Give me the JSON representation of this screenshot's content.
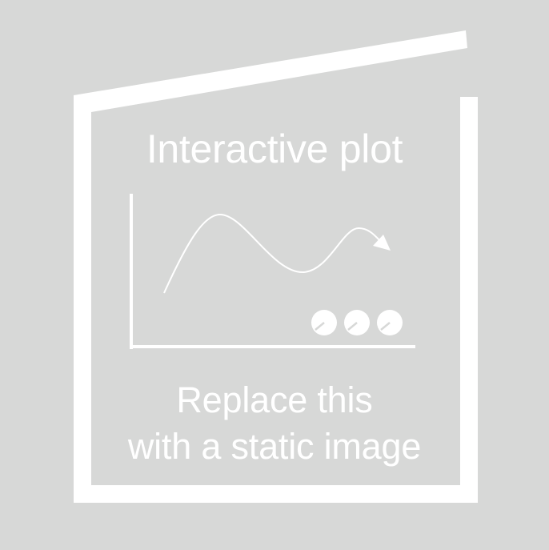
{
  "placeholder": {
    "title": "Interactive plot",
    "caption_line1": "Replace this",
    "caption_line2": "with a static image",
    "background_color": "#d7d8d7",
    "foreground_color": "#ffffff",
    "icons": [
      "frame-outline-icon",
      "plot-axes-icon",
      "curve-arrow-icon",
      "dial-icon"
    ]
  }
}
